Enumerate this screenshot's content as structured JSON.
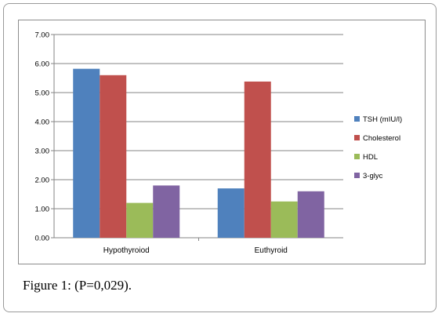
{
  "caption": {
    "label": "Figure 1:",
    "text": " (P=0,029)."
  },
  "chart_data": {
    "type": "bar",
    "categories": [
      "Hypothyroiod",
      "Euthyroid"
    ],
    "series": [
      {
        "name": "TSH (mIU/l)",
        "color": "#4f81bd",
        "values": [
          5.82,
          1.7
        ]
      },
      {
        "name": "Cholesterol",
        "color": "#c0504d",
        "values": [
          5.6,
          5.38
        ]
      },
      {
        "name": "HDL",
        "color": "#9bbb59",
        "values": [
          1.2,
          1.25
        ]
      },
      {
        "name": "3-glyc",
        "color": "#8064a2",
        "values": [
          1.8,
          1.6
        ]
      }
    ],
    "ylim": [
      0,
      7
    ],
    "yticks": [
      "0.00",
      "1.00",
      "2.00",
      "3.00",
      "4.00",
      "5.00",
      "6.00",
      "7.00"
    ],
    "grid": true,
    "legend": "right"
  }
}
